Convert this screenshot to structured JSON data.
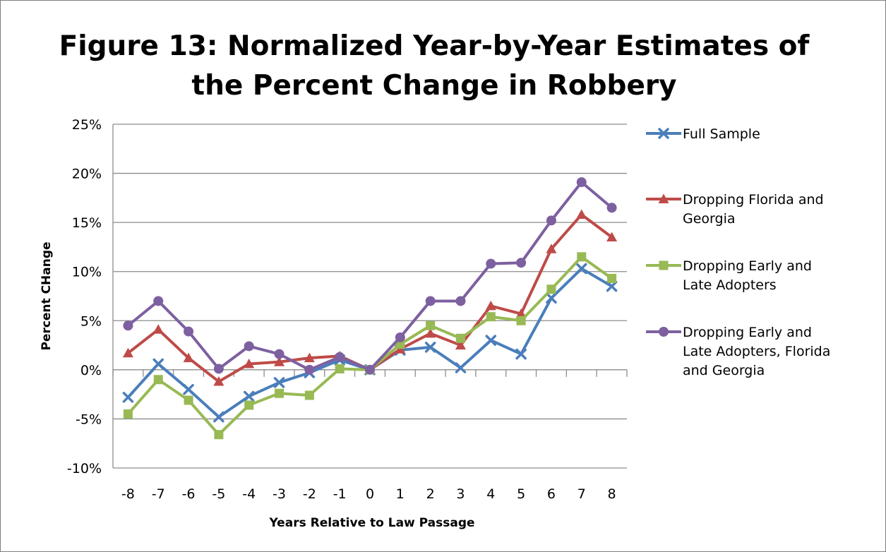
{
  "chart_data": {
    "type": "line",
    "title_lines": [
      "Figure 13: Normalized Year-by-Year Estimates of",
      "the Percent Change in Robbery"
    ],
    "xlabel": "Years Relative to Law Passage",
    "ylabel": "Percent CHange",
    "x": [
      -8,
      -7,
      -6,
      -5,
      -4,
      -3,
      -2,
      -1,
      0,
      1,
      2,
      3,
      4,
      5,
      6,
      7,
      8
    ],
    "ylim": [
      -10,
      25
    ],
    "yticks": [
      -10,
      -5,
      0,
      5,
      10,
      15,
      20,
      25
    ],
    "ytick_labels": [
      "-10%",
      "-5%",
      "0%",
      "5%",
      "10%",
      "15%",
      "20%",
      "25%"
    ],
    "grid": "horizontal",
    "legend_position": "right",
    "series": [
      {
        "name": "Full Sample",
        "legend_lines": [
          "Full Sample"
        ],
        "color": "#4a7ebb",
        "marker": "x",
        "values": [
          -2.8,
          0.6,
          -2.0,
          -4.8,
          -2.7,
          -1.3,
          -0.3,
          1.0,
          0.0,
          2.0,
          2.3,
          0.2,
          3.0,
          1.6,
          7.3,
          10.3,
          8.5
        ]
      },
      {
        "name": "Dropping Florida and Georgia",
        "legend_lines": [
          "Dropping Florida and",
          "Georgia"
        ],
        "color": "#be4b48",
        "marker": "triangle",
        "values": [
          1.7,
          4.1,
          1.2,
          -1.2,
          0.6,
          0.8,
          1.2,
          1.4,
          0.0,
          2.1,
          3.7,
          2.5,
          6.5,
          5.7,
          12.3,
          15.8,
          13.5
        ]
      },
      {
        "name": "Dropping Early and Late Adopters",
        "legend_lines": [
          "Dropping Early and",
          "Late Adopters"
        ],
        "color": "#98b954",
        "marker": "square",
        "values": [
          -4.5,
          -1.0,
          -3.1,
          -6.6,
          -3.6,
          -2.4,
          -2.6,
          0.1,
          0.0,
          2.6,
          4.5,
          3.2,
          5.4,
          5.0,
          8.2,
          11.5,
          9.3
        ]
      },
      {
        "name": "Dropping Early and Late Adopters, Florida and Georgia",
        "legend_lines": [
          "Dropping Early and",
          "Late Adopters, Florida",
          "and Georgia"
        ],
        "color": "#7d60a0",
        "marker": "circle",
        "values": [
          4.5,
          7.0,
          3.9,
          0.1,
          2.4,
          1.6,
          0.0,
          1.3,
          0.0,
          3.3,
          7.0,
          7.0,
          10.8,
          10.9,
          15.2,
          19.1,
          16.5
        ]
      }
    ]
  }
}
